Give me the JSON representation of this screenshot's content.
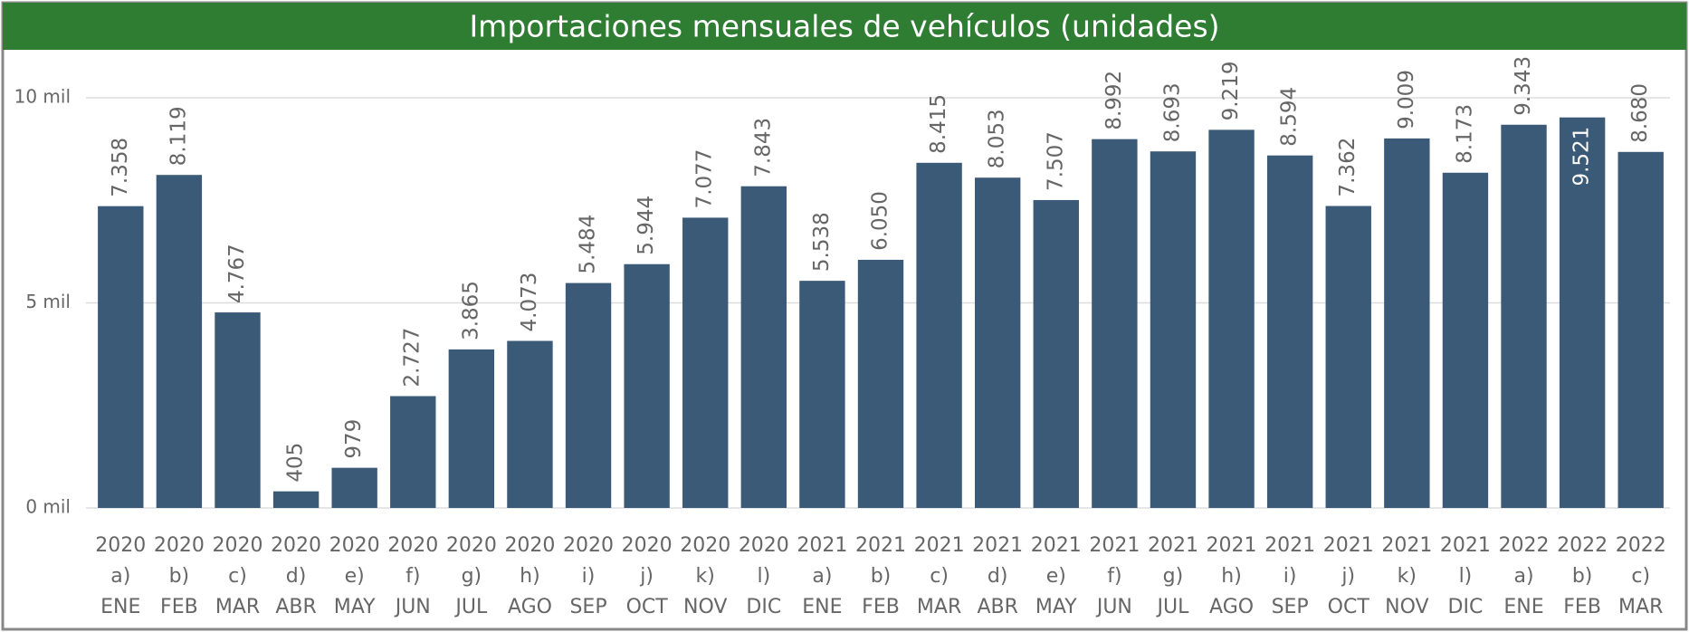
{
  "chart_data": {
    "type": "bar",
    "title": "Importaciones mensuales de vehículos (unidades)",
    "categories": [
      [
        "2020",
        "a)",
        "ENE"
      ],
      [
        "2020",
        "b)",
        "FEB"
      ],
      [
        "2020",
        "c)",
        "MAR"
      ],
      [
        "2020",
        "d)",
        "ABR"
      ],
      [
        "2020",
        "e)",
        "MAY"
      ],
      [
        "2020",
        "f)",
        "JUN"
      ],
      [
        "2020",
        "g)",
        "JUL"
      ],
      [
        "2020",
        "h)",
        "AGO"
      ],
      [
        "2020",
        "i)",
        "SEP"
      ],
      [
        "2020",
        "j)",
        "OCT"
      ],
      [
        "2020",
        "k)",
        "NOV"
      ],
      [
        "2020",
        "l)",
        "DIC"
      ],
      [
        "2021",
        "a)",
        "ENE"
      ],
      [
        "2021",
        "b)",
        "FEB"
      ],
      [
        "2021",
        "c)",
        "MAR"
      ],
      [
        "2021",
        "d)",
        "ABR"
      ],
      [
        "2021",
        "e)",
        "MAY"
      ],
      [
        "2021",
        "f)",
        "JUN"
      ],
      [
        "2021",
        "g)",
        "JUL"
      ],
      [
        "2021",
        "h)",
        "AGO"
      ],
      [
        "2021",
        "i)",
        "SEP"
      ],
      [
        "2021",
        "j)",
        "OCT"
      ],
      [
        "2021",
        "k)",
        "NOV"
      ],
      [
        "2021",
        "l)",
        "DIC"
      ],
      [
        "2022",
        "a)",
        "ENE"
      ],
      [
        "2022",
        "b)",
        "FEB"
      ],
      [
        "2022",
        "c)",
        "MAR"
      ]
    ],
    "values": [
      7358,
      8119,
      4767,
      405,
      979,
      2727,
      3865,
      4073,
      5484,
      5944,
      7077,
      7843,
      5538,
      6050,
      8415,
      8053,
      7507,
      8992,
      8693,
      9219,
      8594,
      7362,
      9009,
      8173,
      9343,
      9521,
      8680
    ],
    "value_labels": [
      "7.358",
      "8.119",
      "4.767",
      "405",
      "979",
      "2.727",
      "3.865",
      "4.073",
      "5.484",
      "5.944",
      "7.077",
      "7.843",
      "5.538",
      "6.050",
      "8.415",
      "8.053",
      "7.507",
      "8.992",
      "8.693",
      "9.219",
      "8.594",
      "7.362",
      "9.009",
      "8.173",
      "9.343",
      "9.521",
      "8.680"
    ],
    "color": "#3a5a78",
    "ylim": [
      0,
      10000
    ],
    "yticks": [
      {
        "value": 0,
        "label": "0 mil"
      },
      {
        "value": 5000,
        "label": "5 mil"
      },
      {
        "value": 10000,
        "label": "10 mil"
      }
    ],
    "grid": true
  }
}
